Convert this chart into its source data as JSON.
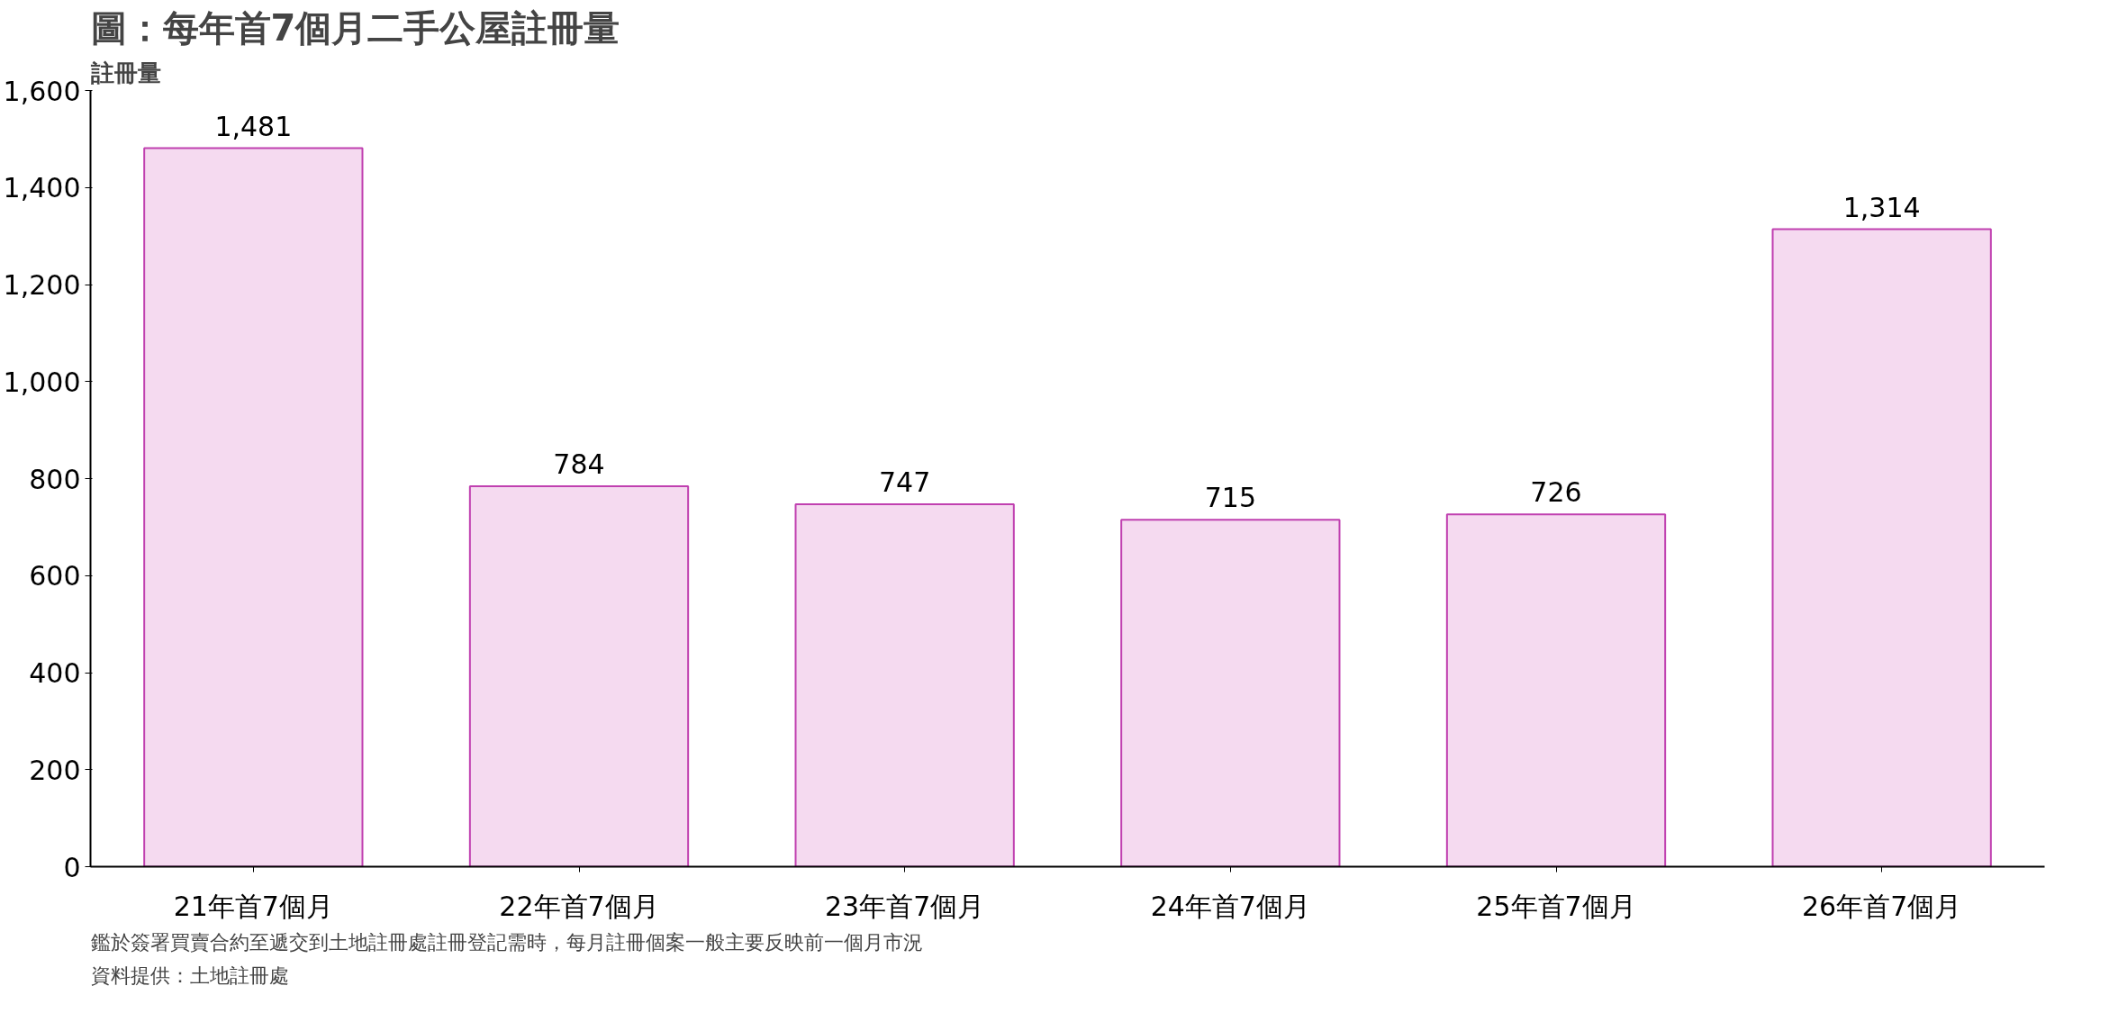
{
  "chart_data": {
    "type": "bar",
    "title": "圖：每年首7個月二手公屋註冊量",
    "ylabel": "註冊量",
    "categories": [
      "21年首7個月",
      "22年首7個月",
      "23年首7個月",
      "24年首7個月",
      "25年首7個月",
      "26年首7個月"
    ],
    "values": [
      1481,
      784,
      747,
      715,
      726,
      1314
    ],
    "value_labels": [
      "1,481",
      "784",
      "747",
      "715",
      "726",
      "1,314"
    ],
    "color": "#f5daf0",
    "ylim": [
      0,
      1600
    ],
    "yticks": [
      {
        "value": 0,
        "label": "0"
      },
      {
        "value": 200,
        "label": "200"
      },
      {
        "value": 400,
        "label": "400"
      },
      {
        "value": 600,
        "label": "600"
      },
      {
        "value": 800,
        "label": "800"
      },
      {
        "value": 1000,
        "label": "1,000"
      },
      {
        "value": 1200,
        "label": "1,200"
      },
      {
        "value": 1400,
        "label": "1,400"
      },
      {
        "value": 1600,
        "label": "1,600"
      }
    ],
    "grid": false,
    "annotations": [
      "鑑於簽署買賣合約至遞交到土地註冊處註冊登記需時，每月註冊個案一般主要反映前一個月市況",
      "資料提供：土地註冊處"
    ]
  }
}
